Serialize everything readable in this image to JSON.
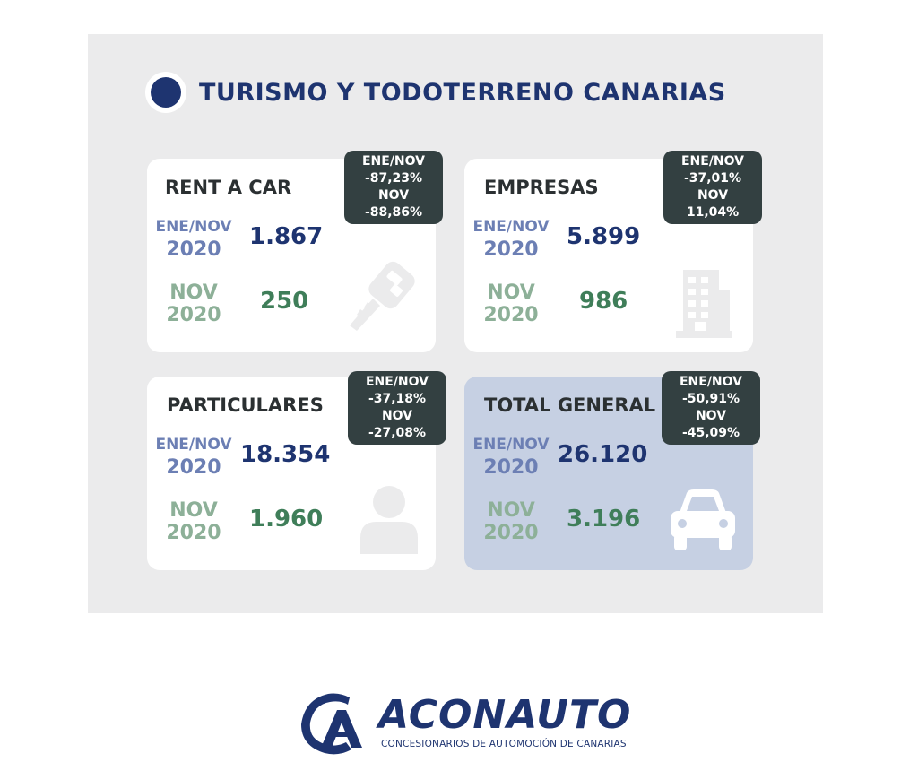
{
  "header": {
    "title": "TURISMO Y TODOTERRENO CANARIAS"
  },
  "cards": [
    {
      "title": "RENT A CAR",
      "ene_label_1": "ENE/NOV",
      "ene_label_2": "2020",
      "ene_value": "1.867",
      "nov_label_1": "NOV",
      "nov_label_2": "2020",
      "nov_value": "250",
      "badge": {
        "l1": "ENE/NOV",
        "l2": "-87,23%",
        "l3": "NOV",
        "l4": "-88,86%"
      },
      "icon": "key-icon"
    },
    {
      "title": "EMPRESAS",
      "ene_label_1": "ENE/NOV",
      "ene_label_2": "2020",
      "ene_value": "5.899",
      "nov_label_1": "NOV",
      "nov_label_2": "2020",
      "nov_value": "986",
      "badge": {
        "l1": "ENE/NOV",
        "l2": "-37,01%",
        "l3": "NOV",
        "l4": "11,04%"
      },
      "icon": "building-icon"
    },
    {
      "title": "PARTICULARES",
      "ene_label_1": "ENE/NOV",
      "ene_label_2": "2020",
      "ene_value": "18.354",
      "nov_label_1": "NOV",
      "nov_label_2": "2020",
      "nov_value": "1.960",
      "badge": {
        "l1": "ENE/NOV",
        "l2": "-37,18%",
        "l3": "NOV",
        "l4": "-27,08%"
      },
      "icon": "person-icon"
    },
    {
      "title": "TOTAL GENERAL",
      "ene_label_1": "ENE/NOV",
      "ene_label_2": "2020",
      "ene_value": "26.120",
      "nov_label_1": "NOV",
      "nov_label_2": "2020",
      "nov_value": "3.196",
      "badge": {
        "l1": "ENE/NOV",
        "l2": "-50,91%",
        "l3": "NOV",
        "l4": "-45,09%"
      },
      "icon": "car-icon"
    }
  ],
  "logo": {
    "name": "ACONAUTO",
    "subtitle": "CONCESIONARIOS DE AUTOMOCIÓN DE CANARIAS"
  },
  "colors": {
    "navy": "#1e3470",
    "ene_label": "#6c7fb4",
    "nov_label": "#8db098",
    "green": "#3f7e59",
    "badge": "#334041",
    "panel": "#ebebec",
    "total_card": "#c6d0e3"
  }
}
